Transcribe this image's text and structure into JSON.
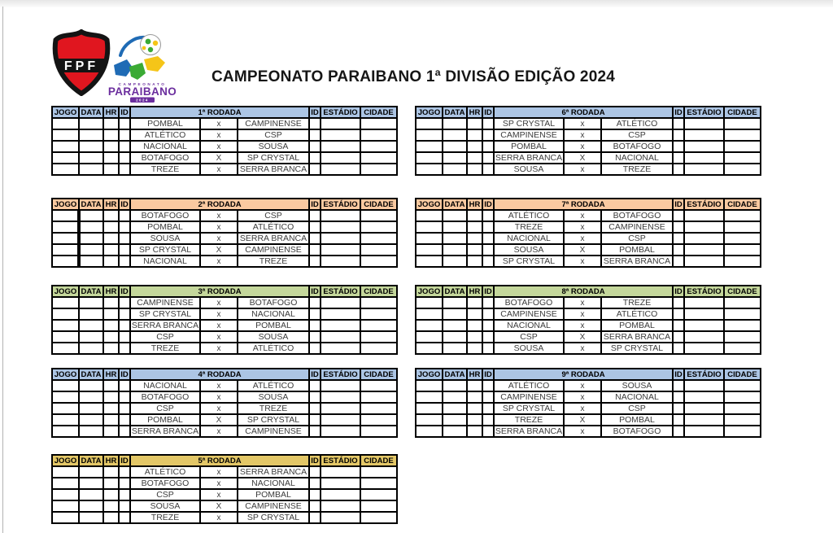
{
  "page": {
    "title": "CAMPEONATO PARAIBANO 1ª DIVISÃO EDIÇÃO 2024"
  },
  "logos": {
    "fpf_text": "FPF",
    "paraibano_top": "CAMPEONATO",
    "paraibano_name": "PARAIBANO",
    "paraibano_year": "2024"
  },
  "table_columns": {
    "jogo": "JOGO",
    "data": "DATA",
    "hr": "HR",
    "id": "ID",
    "estadio": "ESTÁDIO",
    "cidade": "CIDADE"
  },
  "colors": {
    "blue": "#ACC5E4",
    "salmon": "#FAC9A0",
    "green": "#C4D79B",
    "gold": "#E3C767"
  },
  "rounds": [
    {
      "label": "1ª RODADA",
      "color": "blue",
      "matches": [
        {
          "home": "POMBAL",
          "sep": "x",
          "away": "CAMPINENSE"
        },
        {
          "home": "ATLÉTICO",
          "sep": "x",
          "away": "CSP"
        },
        {
          "home": "NACIONAL",
          "sep": "x",
          "away": "SOUSA"
        },
        {
          "home": "BOTAFOGO",
          "sep": "X",
          "away": "SP CRYSTAL"
        },
        {
          "home": "TREZE",
          "sep": "x",
          "away": "SERRA BRANCA"
        }
      ]
    },
    {
      "label": "2ª RODADA",
      "color": "salmon",
      "matches": [
        {
          "home": "BOTAFOGO",
          "sep": "x",
          "away": "CSP"
        },
        {
          "home": "POMBAL",
          "sep": "x",
          "away": "ATLÉTICO"
        },
        {
          "home": "SOUSA",
          "sep": "x",
          "away": "SERRA BRANCA"
        },
        {
          "home": "SP CRYSTAL",
          "sep": "X",
          "away": "CAMPINENSE"
        },
        {
          "home": "NACIONAL",
          "sep": "x",
          "away": "TREZE"
        }
      ]
    },
    {
      "label": "3ª RODADA",
      "color": "green",
      "matches": [
        {
          "home": "CAMPINENSE",
          "sep": "x",
          "away": "BOTAFOGO"
        },
        {
          "home": "SP CRYSTAL",
          "sep": "x",
          "away": "NACIONAL"
        },
        {
          "home": "SERRA BRANCA",
          "sep": "x",
          "away": "POMBAL"
        },
        {
          "home": "CSP",
          "sep": "x",
          "away": "SOUSA"
        },
        {
          "home": "TREZE",
          "sep": "x",
          "away": "ATLÉTICO"
        }
      ]
    },
    {
      "label": "4ª RODADA",
      "color": "blue",
      "matches": [
        {
          "home": "NACIONAL",
          "sep": "x",
          "away": "ATLÉTICO"
        },
        {
          "home": "BOTAFOGO",
          "sep": "x",
          "away": "SOUSA"
        },
        {
          "home": "CSP",
          "sep": "x",
          "away": "TREZE"
        },
        {
          "home": "POMBAL",
          "sep": "X",
          "away": "SP CRYSTAL"
        },
        {
          "home": "SERRA BRANCA",
          "sep": "x",
          "away": "CAMPINENSE"
        }
      ]
    },
    {
      "label": "5ª RODADA",
      "color": "gold",
      "matches": [
        {
          "home": "ATLÉTICO",
          "sep": "x",
          "away": "SERRA BRANCA"
        },
        {
          "home": "BOTAFOGO",
          "sep": "x",
          "away": "NACIONAL"
        },
        {
          "home": "CSP",
          "sep": "x",
          "away": "POMBAL"
        },
        {
          "home": "SOUSA",
          "sep": "X",
          "away": "CAMPINENSE"
        },
        {
          "home": "TREZE",
          "sep": "x",
          "away": "SP CRYSTAL"
        }
      ]
    },
    {
      "label": "6ª RODADA",
      "color": "blue",
      "matches": [
        {
          "home": "SP CRYSTAL",
          "sep": "x",
          "away": "ATLÉTICO"
        },
        {
          "home": "CAMPINENSE",
          "sep": "x",
          "away": "CSP"
        },
        {
          "home": "POMBAL",
          "sep": "x",
          "away": "BOTAFOGO"
        },
        {
          "home": "SERRA BRANCA",
          "sep": "X",
          "away": "NACIONAL"
        },
        {
          "home": "SOUSA",
          "sep": "x",
          "away": "TREZE"
        }
      ]
    },
    {
      "label": "7ª RODADA",
      "color": "salmon",
      "matches": [
        {
          "home": "ATLÉTICO",
          "sep": "x",
          "away": "BOTAFOGO"
        },
        {
          "home": "TREZE",
          "sep": "x",
          "away": "CAMPINENSE"
        },
        {
          "home": "NACIONAL",
          "sep": "x",
          "away": "CSP"
        },
        {
          "home": "SOUSA",
          "sep": "X",
          "away": "POMBAL"
        },
        {
          "home": "SP CRYSTAL",
          "sep": "x",
          "away": "SERRA BRANCA"
        }
      ]
    },
    {
      "label": "8ª RODADA",
      "color": "green",
      "matches": [
        {
          "home": "BOTAFOGO",
          "sep": "x",
          "away": "TREZE"
        },
        {
          "home": "CAMPINENSE",
          "sep": "x",
          "away": "ATLÉTICO"
        },
        {
          "home": "NACIONAL",
          "sep": "x",
          "away": "POMBAL"
        },
        {
          "home": "CSP",
          "sep": "X",
          "away": "SERRA BRANCA"
        },
        {
          "home": "SOUSA",
          "sep": "x",
          "away": "SP CRYSTAL"
        }
      ]
    },
    {
      "label": "9ª RODADA",
      "color": "blue",
      "matches": [
        {
          "home": "ATLÉTICO",
          "sep": "x",
          "away": "SOUSA"
        },
        {
          "home": "CAMPINENSE",
          "sep": "x",
          "away": "NACIONAL"
        },
        {
          "home": "SP CRYSTAL",
          "sep": "x",
          "away": "CSP"
        },
        {
          "home": "TREZE",
          "sep": "X",
          "away": "POMBAL"
        },
        {
          "home": "SERRA BRANCA",
          "sep": "x",
          "away": "BOTAFOGO"
        }
      ]
    }
  ]
}
